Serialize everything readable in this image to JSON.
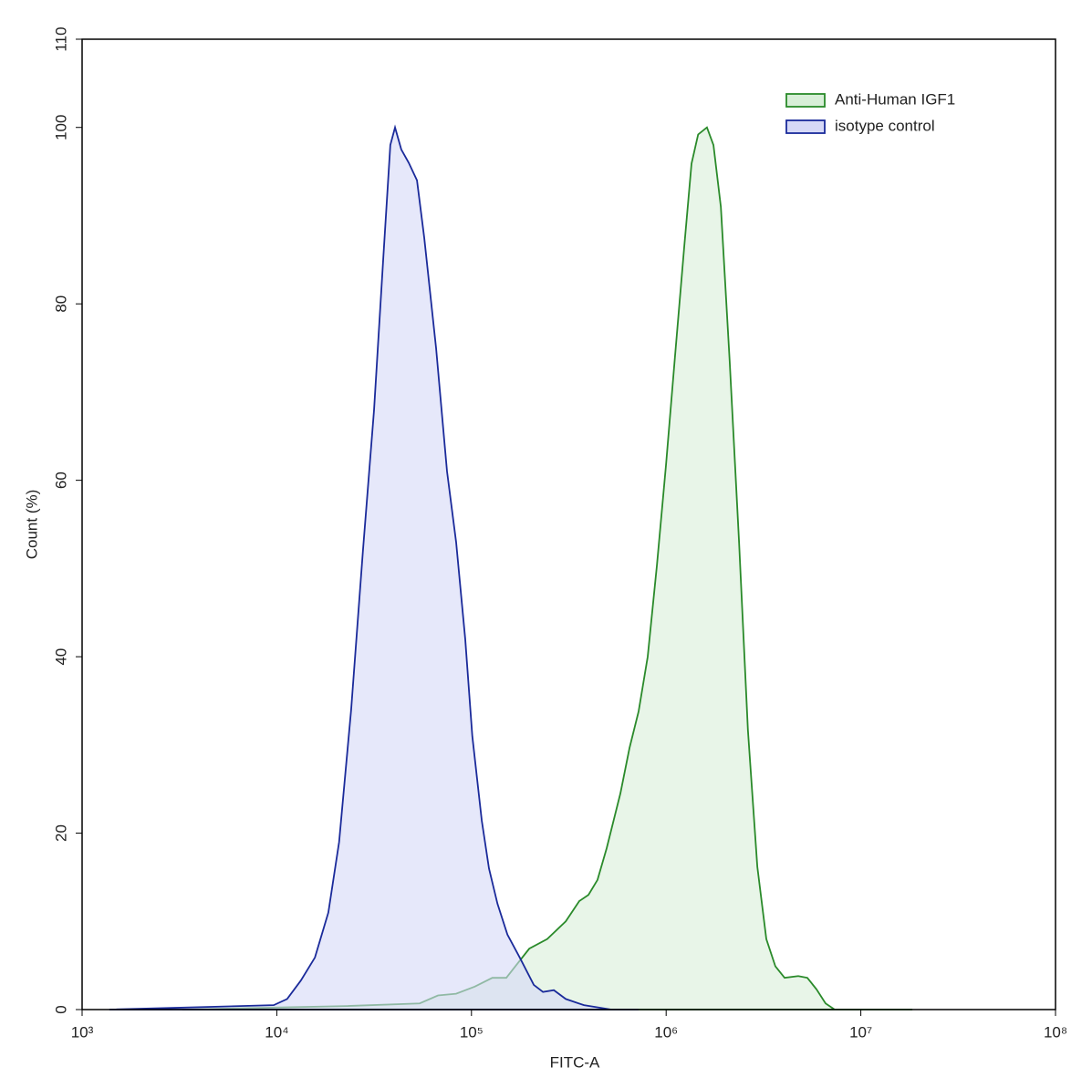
{
  "chart_data": {
    "type": "area",
    "x_label": "FITC-A",
    "y_label": "Count (%)",
    "xscale": "log",
    "xlim": [
      1000,
      100000000
    ],
    "xticks": [
      {
        "value": 1000,
        "label": "10³"
      },
      {
        "value": 10000,
        "label": "10⁴"
      },
      {
        "value": 100000,
        "label": "10⁵"
      },
      {
        "value": 1000000,
        "label": "10⁶"
      },
      {
        "value": 10000000,
        "label": "10⁷"
      },
      {
        "value": 100000000,
        "label": "10⁸"
      }
    ],
    "ylim": [
      0,
      110
    ],
    "yticks": [
      0,
      20,
      40,
      60,
      80,
      100,
      110
    ],
    "legend": "top-right",
    "series": [
      {
        "name": "Anti-Human IGF1",
        "color": "#2a8a2a",
        "fill": "#d8efd8",
        "x": [
          3270,
          22800,
          54200,
          67300,
          83400,
          104000,
          128000,
          151000,
          168000,
          198000,
          245000,
          305000,
          358000,
          399000,
          444000,
          495000,
          582000,
          649000,
          722000,
          804000,
          896000,
          998000,
          1110000,
          1240000,
          1350000,
          1460000,
          1620000,
          1750000,
          1910000,
          2120000,
          2370000,
          2630000,
          2940000,
          3270000,
          3640000,
          4060000,
          4770000,
          5310000,
          5920000,
          6590000,
          7340000,
          18400000
        ],
        "values": [
          0,
          0.4,
          0.7,
          1.6,
          1.8,
          2.6,
          3.6,
          3.6,
          4.9,
          6.9,
          8,
          10,
          12.3,
          13,
          14.7,
          18.3,
          24.5,
          29.7,
          33.8,
          40,
          50.3,
          61.7,
          74,
          86.6,
          95.9,
          99.2,
          100,
          98,
          91,
          73.5,
          52.9,
          31.7,
          16.2,
          8,
          4.9,
          3.6,
          3.8,
          3.6,
          2.3,
          0.7,
          0,
          0
        ]
      },
      {
        "name": "isotype control",
        "color": "#1a2a9a",
        "fill": "#d6d9f7",
        "x": [
          1380,
          9640,
          11300,
          13300,
          15700,
          18400,
          20900,
          24100,
          27700,
          31600,
          35200,
          38300,
          40500,
          43600,
          47600,
          52500,
          57200,
          65800,
          74900,
          83400,
          92900,
          101000,
          113000,
          123000,
          136000,
          153000,
          177000,
          209000,
          233000,
          265000,
          305000,
          378000,
          522000,
          722000
        ],
        "values": [
          0,
          0.5,
          1.2,
          3.3,
          5.9,
          11,
          19,
          34,
          52,
          68,
          85,
          98,
          100,
          97.5,
          96,
          94,
          87.5,
          75,
          61,
          53,
          42,
          31,
          21.4,
          16,
          12,
          8.5,
          5.9,
          2.8,
          2,
          2.2,
          1.2,
          0.5,
          0,
          0
        ]
      }
    ]
  }
}
